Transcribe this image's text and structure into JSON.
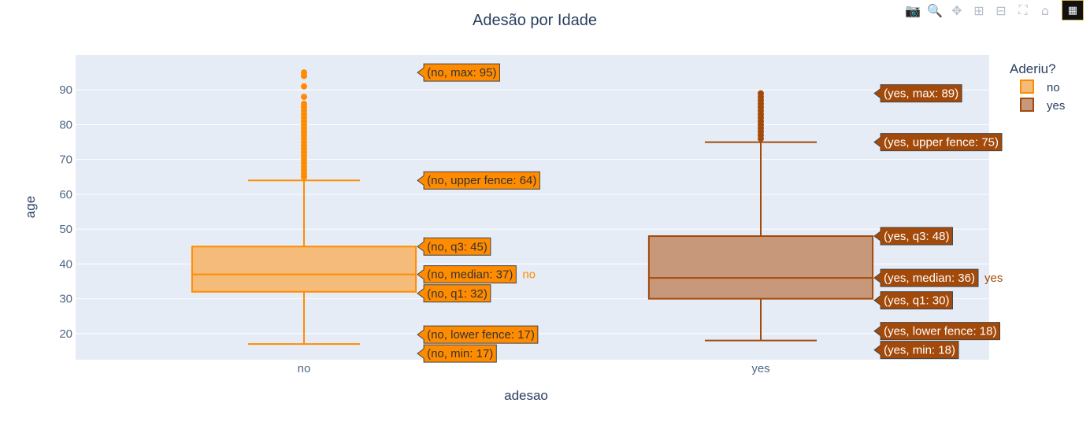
{
  "modebar": {
    "icons": [
      "camera-icon",
      "zoom-icon",
      "pan-icon",
      "zoom-in-icon",
      "zoom-out-icon",
      "autoscale-icon",
      "home-icon",
      "plotly-logo-icon"
    ]
  },
  "chart_data": {
    "type": "box",
    "title": "Adesão por Idade",
    "xlabel": "adesao",
    "ylabel": "age",
    "categories": [
      "no",
      "yes"
    ],
    "ylim": [
      12.5,
      100
    ],
    "yticks": [
      20,
      30,
      40,
      50,
      60,
      70,
      80,
      90
    ],
    "grid": true,
    "legend": {
      "title": "Aderiu?",
      "placement": "top-right",
      "entries": [
        "no",
        "yes"
      ]
    },
    "series": [
      {
        "name": "no",
        "color": "#ff8c00",
        "fill": "#f5bb7a",
        "label_color": "#ff8c00",
        "min": 17,
        "lower_fence": 17,
        "q1": 32,
        "median": 37,
        "q3": 45,
        "upper_fence": 64,
        "max": 95,
        "outliers": [
          65,
          66,
          67,
          68,
          69,
          70,
          71,
          72,
          73,
          74,
          75,
          76,
          77,
          78,
          79,
          80,
          81,
          82,
          83,
          84,
          85,
          86,
          88,
          91,
          94,
          95
        ],
        "hover_labels": {
          "max": "(no, max: 95)",
          "upper_fence": "(no, upper fence: 64)",
          "q3": "(no, q3: 45)",
          "median": "(no, median: 37)",
          "q1": "(no, q1: 32)",
          "lower_fence": "(no, lower fence: 17)",
          "min": "(no, min: 17)"
        }
      },
      {
        "name": "yes",
        "color": "#a34a0b",
        "fill": "#c8987a",
        "label_color": "#a34a0b",
        "min": 18,
        "lower_fence": 18,
        "q1": 30,
        "median": 36,
        "q3": 48,
        "upper_fence": 75,
        "max": 89,
        "outliers": [
          76,
          77,
          78,
          79,
          80,
          81,
          82,
          83,
          84,
          85,
          86,
          87,
          88,
          89
        ],
        "hover_labels": {
          "max": "(yes, max: 89)",
          "upper_fence": "(yes, upper fence: 75)",
          "q3": "(yes, q3: 48)",
          "median": "(yes, median: 36)",
          "q1": "(yes, q1: 30)",
          "lower_fence": "(yes, lower fence: 18)",
          "min": "(yes, min: 18)"
        }
      }
    ]
  }
}
